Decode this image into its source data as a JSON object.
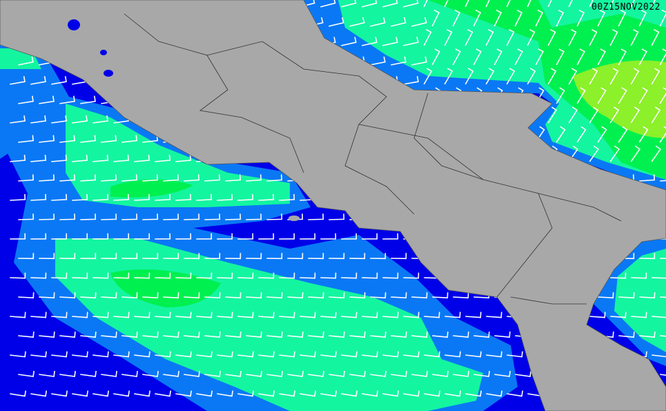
{
  "timestamp": "00Z15NOV2022",
  "colors": {
    "sea_darkblue": "#0000e8",
    "band_blue": "#0a78f5",
    "band_teal": "#14f5a0",
    "band_green": "#00f050",
    "band_yellowgreen": "#8cf02a",
    "land": "#a8a8a8",
    "barb": "#ffffff",
    "border": "#303030"
  },
  "layers": [
    "wind-speed-shading",
    "land-relief",
    "regional-borders",
    "wind-barbs"
  ]
}
